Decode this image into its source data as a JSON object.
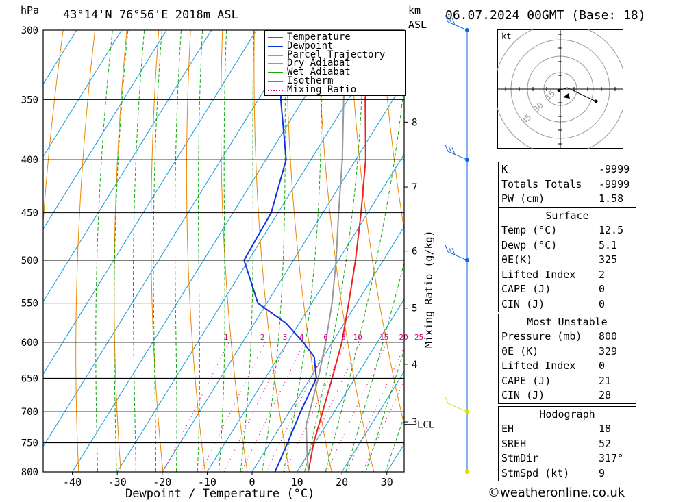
{
  "header": {
    "pressure_unit": "hPa",
    "location": "43°14'N 76°56'E 2018m ASL",
    "km_label": "km",
    "asl_label": "ASL",
    "datetime": "06.07.2024 00GMT (Base: 18)"
  },
  "chart_data": {
    "type": "line",
    "xlabel": "Dewpoint / Temperature (°C)",
    "ylabel": "hPa",
    "mixing_ratio_axis_label": "Mixing Ratio (g/kg)",
    "pressure_ticks": [
      300,
      350,
      400,
      450,
      500,
      550,
      600,
      650,
      700,
      750,
      800
    ],
    "temperature_ticks": [
      -40,
      -30,
      -20,
      -10,
      0,
      10,
      20,
      30
    ],
    "pressure_range": [
      800,
      300
    ],
    "skew_per_1000hpa": 100,
    "km_ticks": [
      {
        "label": "8",
        "p": 368
      },
      {
        "label": "7",
        "p": 425
      },
      {
        "label": "6",
        "p": 490
      },
      {
        "label": "5",
        "p": 556
      },
      {
        "label": "4",
        "p": 630
      },
      {
        "label": "3",
        "p": 716
      }
    ],
    "lcl": {
      "label": "LCL",
      "p": 720
    },
    "mixing_ratio_labels": [
      "1",
      "2",
      "3",
      "4",
      "6",
      "8",
      "10",
      "15",
      "20",
      "25"
    ],
    "mixing_ratio_values": [
      1,
      2,
      3,
      4,
      6,
      8,
      10,
      15,
      20,
      25
    ],
    "legend": [
      "Temperature",
      "Dewpoint",
      "Parcel Trajectory",
      "Dry Adiabat",
      "Wet Adiabat",
      "Isotherm",
      "Mixing Ratio"
    ],
    "colors": {
      "temperature": "#ee2222",
      "dewpoint": "#1133dd",
      "parcel": "#999999",
      "dry_adiabat": "#ee8800",
      "wet_adiabat": "#11aa11",
      "isotherm": "#1199dd",
      "mixing_ratio": "#dd0077"
    },
    "series": [
      {
        "name": "Temperature",
        "points": [
          [
            800,
            12.5
          ],
          [
            750,
            9.7
          ],
          [
            700,
            7.4
          ],
          [
            650,
            4.9
          ],
          [
            600,
            2.1
          ],
          [
            550,
            -1.8
          ],
          [
            500,
            -6.2
          ],
          [
            450,
            -11.5
          ],
          [
            400,
            -17.8
          ],
          [
            350,
            -26.2
          ],
          [
            300,
            -34.8
          ]
        ]
      },
      {
        "name": "Dewpoint",
        "points": [
          [
            800,
            5.1
          ],
          [
            750,
            3.9
          ],
          [
            700,
            2.5
          ],
          [
            650,
            1.4
          ],
          [
            620,
            -2
          ],
          [
            600,
            -6.5
          ],
          [
            575,
            -13
          ],
          [
            550,
            -22
          ],
          [
            500,
            -31
          ],
          [
            450,
            -31.5
          ],
          [
            400,
            -35.5
          ],
          [
            350,
            -45
          ],
          [
            300,
            -54
          ]
        ]
      },
      {
        "name": "Parcel Trajectory",
        "points": [
          [
            800,
            12.5
          ],
          [
            760,
            9
          ],
          [
            720,
            5.5
          ],
          [
            700,
            4.5
          ],
          [
            650,
            1.8
          ],
          [
            600,
            -1.5
          ],
          [
            550,
            -5.5
          ],
          [
            500,
            -10.5
          ],
          [
            450,
            -16.5
          ],
          [
            400,
            -23
          ],
          [
            350,
            -31
          ],
          [
            300,
            -39.5
          ]
        ]
      }
    ]
  },
  "wind_profile": {
    "barbs": [
      {
        "p": 300,
        "barbs": 3,
        "color": "#1166dd"
      },
      {
        "p": 400,
        "barbs": 3,
        "color": "#1166dd"
      },
      {
        "p": 500,
        "barbs": 3,
        "color": "#1166dd"
      },
      {
        "p": 700,
        "barbs": 1,
        "color": "#dddd00"
      },
      {
        "p": 800,
        "barbs": 0,
        "color": "#dddd00"
      }
    ]
  },
  "hodograph": {
    "unit_label": "kt",
    "ring_labels": [
      "15",
      "30",
      "45"
    ]
  },
  "indices": {
    "rows": [
      {
        "label": "K",
        "value": "-9999"
      },
      {
        "label": "Totals Totals",
        "value": "-9999"
      },
      {
        "label": "PW (cm)",
        "value": "1.58"
      }
    ]
  },
  "surface": {
    "title": "Surface",
    "rows": [
      {
        "label": "Temp (°C)",
        "value": "12.5"
      },
      {
        "label": "Dewp (°C)",
        "value": "5.1"
      },
      {
        "label": "θE(K)",
        "value": "325"
      },
      {
        "label": "Lifted Index",
        "value": "2"
      },
      {
        "label": "CAPE (J)",
        "value": "0"
      },
      {
        "label": "CIN (J)",
        "value": "0"
      }
    ]
  },
  "most_unstable": {
    "title": "Most Unstable",
    "rows": [
      {
        "label": "Pressure (mb)",
        "value": "800"
      },
      {
        "label": "θE (K)",
        "value": "329"
      },
      {
        "label": "Lifted Index",
        "value": "0"
      },
      {
        "label": "CAPE (J)",
        "value": "21"
      },
      {
        "label": "CIN (J)",
        "value": "28"
      }
    ]
  },
  "hodograph_table": {
    "title": "Hodograph",
    "rows": [
      {
        "label": "EH",
        "value": "18"
      },
      {
        "label": "SREH",
        "value": "52"
      },
      {
        "label": "StmDir",
        "value": "317°"
      },
      {
        "label": "StmSpd (kt)",
        "value": "9"
      }
    ]
  },
  "copyright": "©weatheronline.co.uk"
}
